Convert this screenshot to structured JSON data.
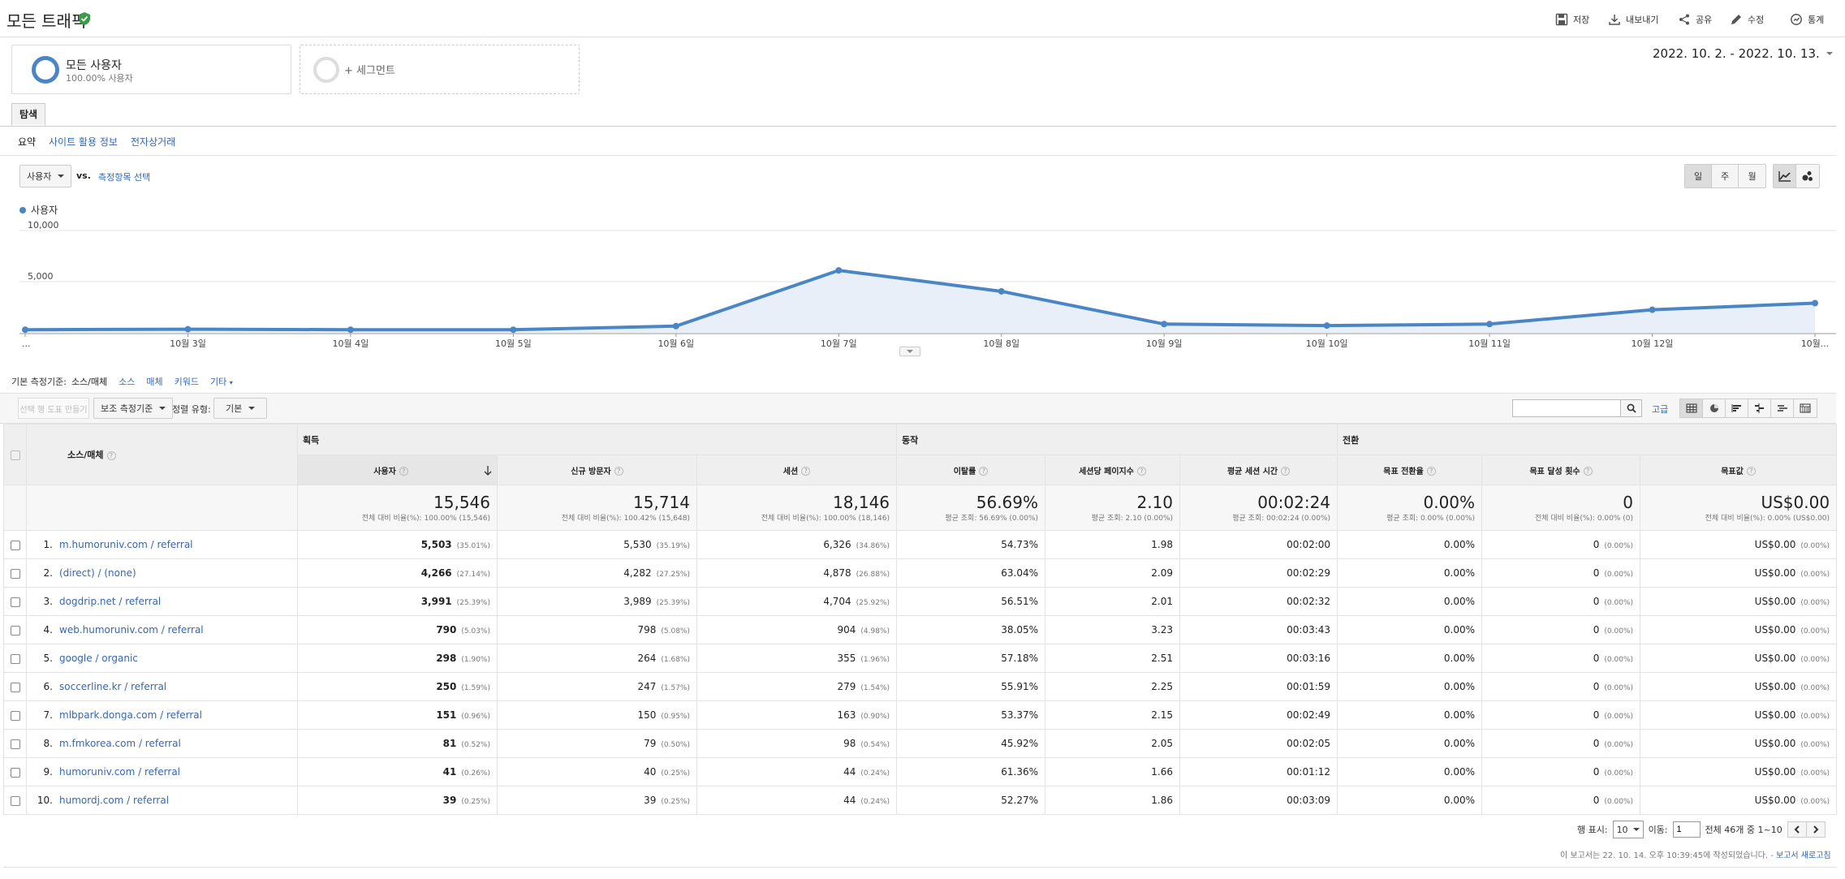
{
  "header": {
    "title": "모든 트래픽",
    "actions": {
      "save": "저장",
      "export": "내보내기",
      "share": "공유",
      "edit": "수정",
      "insights": "통계"
    }
  },
  "segments": {
    "primary": {
      "name": "모든 사용자",
      "sub": "100.00% 사용자"
    },
    "add": "+ 세그먼트"
  },
  "date_range": "2022. 10. 2. - 2022. 10. 13.",
  "tabs": {
    "explore": "탐색",
    "subtabs": [
      "요약",
      "사이트 활용 정보",
      "전자상거래"
    ]
  },
  "chart_controls": {
    "metric": "사용자",
    "vs": "vs.",
    "select_metric": "측정항목 선택",
    "period_buttons": [
      "일",
      "주",
      "월"
    ]
  },
  "chart_data": {
    "type": "area",
    "series": [
      {
        "name": "사용자",
        "values": [
          300,
          350,
          300,
          300,
          650,
          6100,
          4050,
          850,
          700,
          850,
          2250,
          2900
        ]
      }
    ],
    "x_labels": [
      "...",
      "10월 3일",
      "10월 4일",
      "10월 5일",
      "10월 6일",
      "10월 7일",
      "10월 8일",
      "10월 9일",
      "10월 10일",
      "10월 11일",
      "10월 12일",
      "10월..."
    ],
    "y_ticks": [
      "10,000",
      "5,000"
    ],
    "ylim": [
      0,
      10000
    ],
    "color": "#4a86c5"
  },
  "dimension": {
    "label": "기본 측정기준:",
    "current": "소스/매체",
    "options": [
      "소스",
      "매체",
      "키워드",
      "기타"
    ]
  },
  "toolbar": {
    "plot_rows": "선택 행 도표 만들기",
    "secondary": "보조 측정기준",
    "sort_label": "정렬 유형:",
    "sort_value": "기본",
    "advanced": "고급"
  },
  "table": {
    "groups": [
      "획득",
      "동작",
      "전환"
    ],
    "dimension_header": "소스/매체",
    "columns": [
      "사용자",
      "신규 방문자",
      "세션",
      "이탈률",
      "세션당 페이지수",
      "평균 세션 시간",
      "목표 전환율",
      "목표 달성 횟수",
      "목표값"
    ],
    "totals": [
      {
        "value": "15,546",
        "sub": "전체 대비 비율(%): 100.00% (15,546)"
      },
      {
        "value": "15,714",
        "sub": "전체 대비 비율(%): 100.42% (15,648)"
      },
      {
        "value": "18,146",
        "sub": "전체 대비 비율(%): 100.00% (18,146)"
      },
      {
        "value": "56.69%",
        "sub": "평균 조회: 56.69% (0.00%)"
      },
      {
        "value": "2.10",
        "sub": "평균 조회: 2.10 (0.00%)"
      },
      {
        "value": "00:02:24",
        "sub": "평균 조회: 00:02:24 (0.00%)"
      },
      {
        "value": "0.00%",
        "sub": "평균 조회: 0.00% (0.00%)"
      },
      {
        "value": "0",
        "sub": "전체 대비 비율(%): 0.00% (0)"
      },
      {
        "value": "US$0.00",
        "sub": "전체 대비 비율(%): 0.00% (US$0.00)"
      }
    ],
    "rows": [
      {
        "idx": "1.",
        "source": "m.humoruniv.com / referral",
        "users": "5,503",
        "users_pct": "(35.01%)",
        "new": "5,530",
        "new_pct": "(35.19%)",
        "sessions": "6,326",
        "sessions_pct": "(34.86%)",
        "bounce": "54.73%",
        "pps": "1.98",
        "duration": "00:02:00",
        "conv": "0.00%",
        "goals": "0",
        "goals_pct": "(0.00%)",
        "value": "US$0.00",
        "value_pct": "(0.00%)"
      },
      {
        "idx": "2.",
        "source": "(direct) / (none)",
        "users": "4,266",
        "users_pct": "(27.14%)",
        "new": "4,282",
        "new_pct": "(27.25%)",
        "sessions": "4,878",
        "sessions_pct": "(26.88%)",
        "bounce": "63.04%",
        "pps": "2.09",
        "duration": "00:02:29",
        "conv": "0.00%",
        "goals": "0",
        "goals_pct": "(0.00%)",
        "value": "US$0.00",
        "value_pct": "(0.00%)"
      },
      {
        "idx": "3.",
        "source": "dogdrip.net / referral",
        "users": "3,991",
        "users_pct": "(25.39%)",
        "new": "3,989",
        "new_pct": "(25.39%)",
        "sessions": "4,704",
        "sessions_pct": "(25.92%)",
        "bounce": "56.51%",
        "pps": "2.01",
        "duration": "00:02:32",
        "conv": "0.00%",
        "goals": "0",
        "goals_pct": "(0.00%)",
        "value": "US$0.00",
        "value_pct": "(0.00%)"
      },
      {
        "idx": "4.",
        "source": "web.humoruniv.com / referral",
        "users": "790",
        "users_pct": "(5.03%)",
        "new": "798",
        "new_pct": "(5.08%)",
        "sessions": "904",
        "sessions_pct": "(4.98%)",
        "bounce": "38.05%",
        "pps": "3.23",
        "duration": "00:03:43",
        "conv": "0.00%",
        "goals": "0",
        "goals_pct": "(0.00%)",
        "value": "US$0.00",
        "value_pct": "(0.00%)"
      },
      {
        "idx": "5.",
        "source": "google / organic",
        "users": "298",
        "users_pct": "(1.90%)",
        "new": "264",
        "new_pct": "(1.68%)",
        "sessions": "355",
        "sessions_pct": "(1.96%)",
        "bounce": "57.18%",
        "pps": "2.51",
        "duration": "00:03:16",
        "conv": "0.00%",
        "goals": "0",
        "goals_pct": "(0.00%)",
        "value": "US$0.00",
        "value_pct": "(0.00%)"
      },
      {
        "idx": "6.",
        "source": "soccerline.kr / referral",
        "users": "250",
        "users_pct": "(1.59%)",
        "new": "247",
        "new_pct": "(1.57%)",
        "sessions": "279",
        "sessions_pct": "(1.54%)",
        "bounce": "55.91%",
        "pps": "2.25",
        "duration": "00:01:59",
        "conv": "0.00%",
        "goals": "0",
        "goals_pct": "(0.00%)",
        "value": "US$0.00",
        "value_pct": "(0.00%)"
      },
      {
        "idx": "7.",
        "source": "mlbpark.donga.com / referral",
        "users": "151",
        "users_pct": "(0.96%)",
        "new": "150",
        "new_pct": "(0.95%)",
        "sessions": "163",
        "sessions_pct": "(0.90%)",
        "bounce": "53.37%",
        "pps": "2.15",
        "duration": "00:02:49",
        "conv": "0.00%",
        "goals": "0",
        "goals_pct": "(0.00%)",
        "value": "US$0.00",
        "value_pct": "(0.00%)"
      },
      {
        "idx": "8.",
        "source": "m.fmkorea.com / referral",
        "users": "81",
        "users_pct": "(0.52%)",
        "new": "79",
        "new_pct": "(0.50%)",
        "sessions": "98",
        "sessions_pct": "(0.54%)",
        "bounce": "45.92%",
        "pps": "2.05",
        "duration": "00:02:05",
        "conv": "0.00%",
        "goals": "0",
        "goals_pct": "(0.00%)",
        "value": "US$0.00",
        "value_pct": "(0.00%)"
      },
      {
        "idx": "9.",
        "source": "humoruniv.com / referral",
        "users": "41",
        "users_pct": "(0.26%)",
        "new": "40",
        "new_pct": "(0.25%)",
        "sessions": "44",
        "sessions_pct": "(0.24%)",
        "bounce": "61.36%",
        "pps": "1.66",
        "duration": "00:01:12",
        "conv": "0.00%",
        "goals": "0",
        "goals_pct": "(0.00%)",
        "value": "US$0.00",
        "value_pct": "(0.00%)"
      },
      {
        "idx": "10.",
        "source": "humordj.com / referral",
        "users": "39",
        "users_pct": "(0.25%)",
        "new": "39",
        "new_pct": "(0.25%)",
        "sessions": "44",
        "sessions_pct": "(0.24%)",
        "bounce": "52.27%",
        "pps": "1.86",
        "duration": "00:03:09",
        "conv": "0.00%",
        "goals": "0",
        "goals_pct": "(0.00%)",
        "value": "US$0.00",
        "value_pct": "(0.00%)"
      }
    ]
  },
  "footer": {
    "rows_label": "행 표시:",
    "rows_value": "10",
    "goto_label": "이동:",
    "goto_value": "1",
    "range_text": "전체 46개 중 1~10",
    "report_note": "이 보고서는 22. 10. 14. 오후 10:39:45에 작성되었습니다. -",
    "refresh_link": "보고서 새로고침"
  }
}
